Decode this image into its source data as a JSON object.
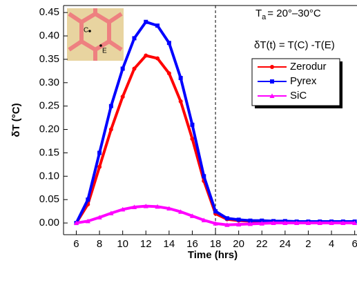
{
  "chart_data": {
    "type": "line",
    "x_label": "Time (hrs)",
    "y_label": "δT (°C)",
    "x": [
      6,
      7,
      8,
      9,
      10,
      11,
      12,
      13,
      14,
      15,
      16,
      17,
      18,
      19,
      20,
      21,
      22,
      23,
      24,
      25,
      26,
      27,
      28,
      29,
      30
    ],
    "series": [
      {
        "name": "Zerodur",
        "color": "#ff0000",
        "marker": "circle",
        "values": [
          0,
          0.04,
          0.12,
          0.2,
          0.27,
          0.33,
          0.358,
          0.352,
          0.32,
          0.26,
          0.18,
          0.09,
          0.02,
          0.008,
          0.005,
          0.004,
          0.003,
          0.003,
          0.002,
          0.002,
          0.002,
          0.002,
          0.002,
          0.002,
          0.002
        ]
      },
      {
        "name": "Pyrex",
        "color": "#0000ff",
        "marker": "square",
        "values": [
          0,
          0.05,
          0.15,
          0.25,
          0.33,
          0.395,
          0.43,
          0.422,
          0.385,
          0.31,
          0.21,
          0.1,
          0.025,
          0.01,
          0.007,
          0.005,
          0.005,
          0.004,
          0.004,
          0.003,
          0.003,
          0.003,
          0.003,
          0.003,
          0.003
        ]
      },
      {
        "name": "SiC",
        "color": "#ff00ff",
        "marker": "triangle",
        "values": [
          0,
          0.004,
          0.012,
          0.021,
          0.029,
          0.034,
          0.036,
          0.035,
          0.031,
          0.024,
          0.015,
          0.006,
          -0.001,
          -0.004,
          -0.003,
          -0.002,
          -0.001,
          0,
          0,
          0,
          0,
          0,
          0,
          0,
          0
        ]
      }
    ],
    "xlim": [
      4.9,
      30.2
    ],
    "xticks": [
      6,
      8,
      10,
      12,
      14,
      16,
      18,
      20,
      22,
      24,
      {
        "value": 26,
        "label": "2"
      },
      {
        "value": 28,
        "label": "4"
      },
      {
        "value": 30,
        "label": "6"
      }
    ],
    "ylim": [
      -0.025,
      0.465
    ],
    "yticks": [
      {
        "value": 0,
        "label": "0.00"
      },
      0.05,
      {
        "value": 0.1,
        "label": "0.10"
      },
      0.15,
      {
        "value": 0.2,
        "label": "0.20"
      },
      0.25,
      {
        "value": 0.3,
        "label": "0.30"
      },
      0.35,
      {
        "value": 0.4,
        "label": "0.40"
      },
      0.45
    ],
    "vline": 18,
    "annotation_ta": {
      "main": "T",
      "sub": "a",
      "rest": "= 20°–30°C"
    },
    "annotation_formula": "δT(t) = T(C) -T(E)",
    "inset_labels": [
      "C",
      "E"
    ],
    "legend": "upper right"
  }
}
